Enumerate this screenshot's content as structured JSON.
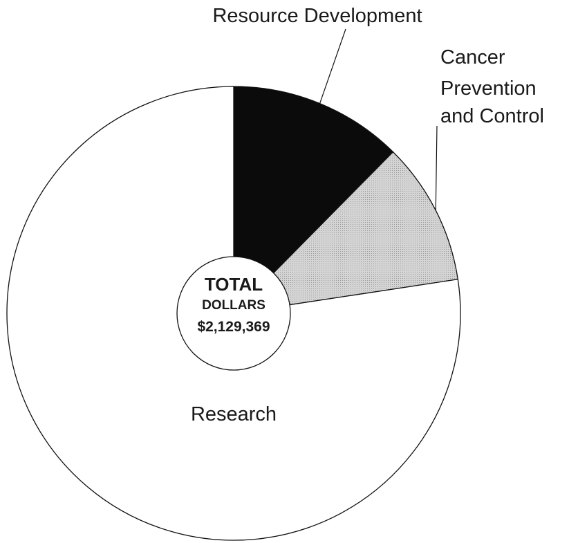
{
  "chart_data": {
    "type": "pie",
    "style": "donut",
    "slices": [
      {
        "label": "Resource Development",
        "value": 12.4,
        "color": "#0b0b0b"
      },
      {
        "label": "Cancer Prevention and Control",
        "value": 10.2,
        "color": "#d0d0d0"
      },
      {
        "label": "Research",
        "value": 77.4,
        "color": "#ffffff"
      }
    ],
    "center": {
      "line1": "TOTAL",
      "line2": "DOLLARS",
      "line3": "$2,129,369"
    },
    "labels": {
      "resource_development": "Resource Development",
      "cancer_line1": "Cancer",
      "cancer_line2": "Prevention",
      "cancer_line3": "and Control",
      "research": "Research"
    },
    "start_angle": "12 o'clock",
    "direction": "clockwise",
    "legend": "none"
  }
}
